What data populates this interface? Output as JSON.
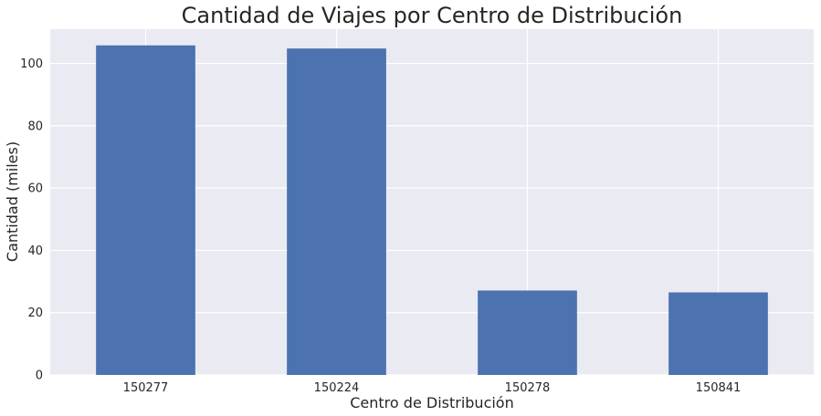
{
  "chart_data": {
    "type": "bar",
    "title": "Cantidad de Viajes por Centro de Distribución",
    "xlabel": "Centro de Distribución",
    "ylabel": "Cantidad (miles)",
    "categories": [
      "150277",
      "150224",
      "150278",
      "150841"
    ],
    "values": [
      105.8,
      104.8,
      27.1,
      26.5
    ],
    "ylim": [
      0,
      111
    ],
    "yticks": [
      0,
      20,
      40,
      60,
      80,
      100
    ],
    "grid": true,
    "legend": "none",
    "colors": {
      "bar": "#4c72b0",
      "plot_background": "#eaeaf2",
      "grid": "#ffffff"
    }
  }
}
